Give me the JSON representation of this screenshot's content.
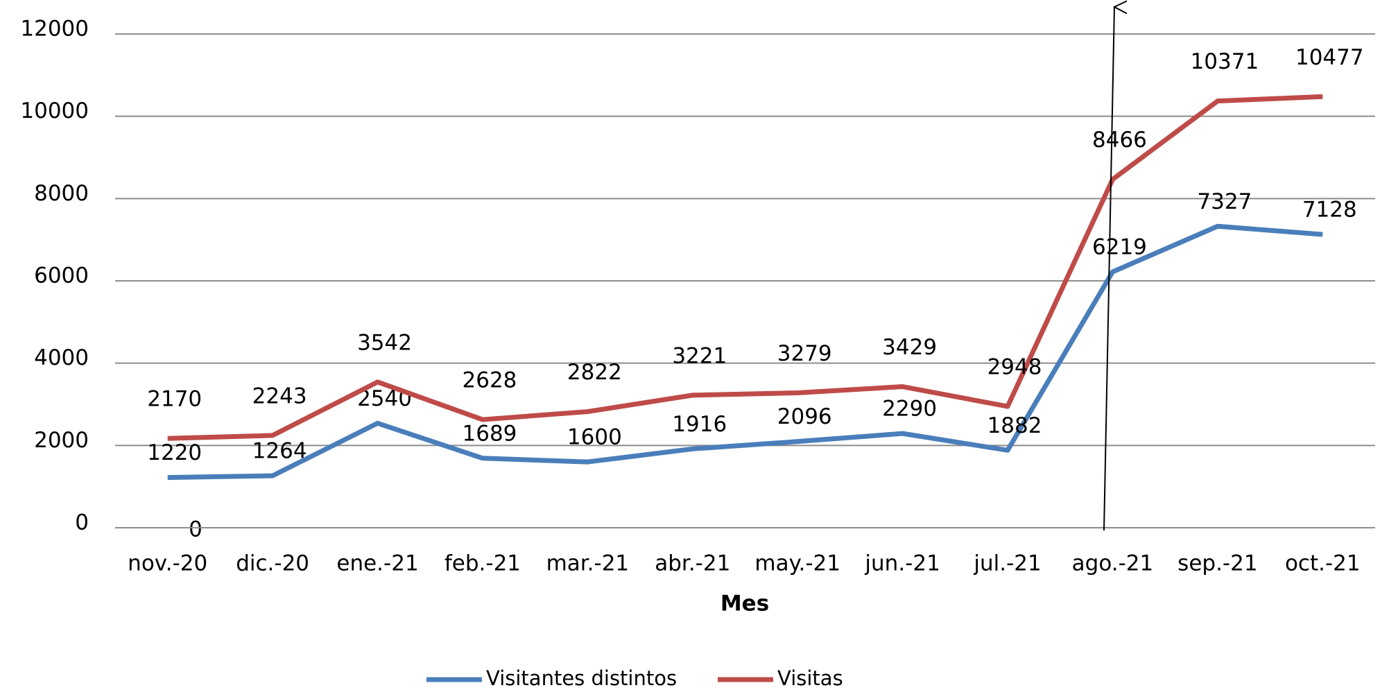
{
  "chart_data": {
    "type": "line",
    "categories": [
      "nov.-20",
      "dic.-20",
      "ene.-21",
      "feb.-21",
      "mar.-21",
      "abr.-21",
      "may.-21",
      "jun.-21",
      "jul.-21",
      "ago.-21",
      "sep.-21",
      "oct.-21"
    ],
    "series": [
      {
        "name": "Visitantes distintos",
        "color": "#4a7ebb",
        "values": [
          1220,
          1264,
          2540,
          1689,
          1600,
          1916,
          2096,
          2290,
          1882,
          6219,
          7327,
          7128
        ]
      },
      {
        "name": "Visitas",
        "color": "#be4b48",
        "values": [
          2170,
          2243,
          3542,
          2628,
          2822,
          3221,
          3279,
          3429,
          2948,
          8466,
          10371,
          10477
        ]
      }
    ],
    "x_label": "Mes",
    "annotation": "0",
    "ylim": [
      0,
      12000
    ],
    "yticks": [
      0,
      2000,
      4000,
      6000,
      8000,
      10000,
      12000
    ],
    "grid": true,
    "legend": "bottom"
  }
}
